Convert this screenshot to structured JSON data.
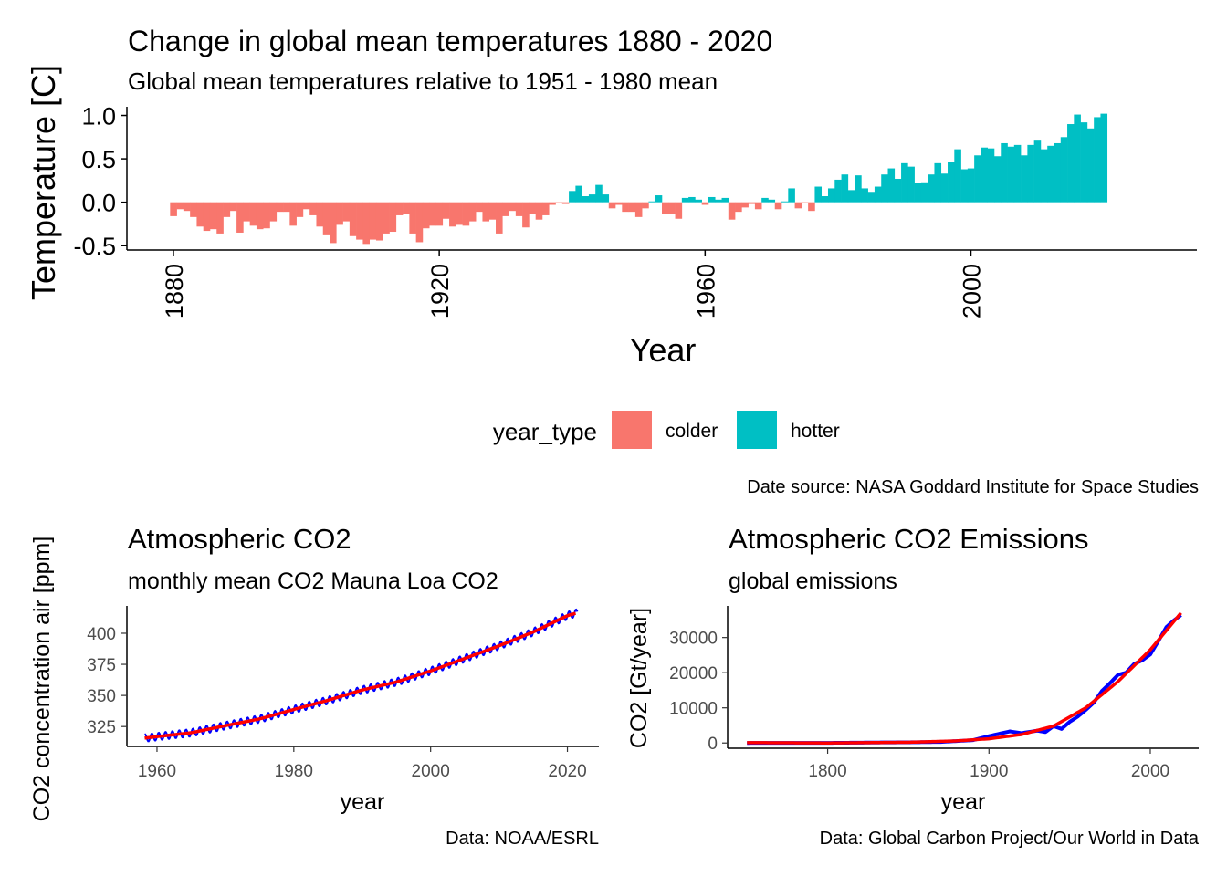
{
  "colors": {
    "colder": "#F8766D",
    "hotter": "#00BFC4",
    "co2_raw": "#0000FF",
    "co2_fit": "#FF0000",
    "axis": "#000000",
    "tick_text_dark": "#000000",
    "tick_text_grey": "#4D4D4D"
  },
  "panels": {
    "temperature": {
      "title": "Change in global mean temperatures 1880 - 2020",
      "subtitle": "Global mean temperatures relative to 1951 - 1980 mean",
      "caption": "Date source: NASA Goddard Institute for Space Studies",
      "legend": {
        "title": "year_type",
        "entries": [
          {
            "key": "colder",
            "label": "colder"
          },
          {
            "key": "hotter",
            "label": "hotter"
          }
        ]
      }
    },
    "co2_conc": {
      "title": "Atmospheric CO2",
      "subtitle": "monthly mean CO2 Mauna Loa CO2",
      "caption": "Data: NOAA/ESRL"
    },
    "co2_emis": {
      "title": "Atmospheric CO2 Emissions",
      "subtitle": "global emissions",
      "caption": "Data: Global Carbon Project/Our World in Data"
    }
  },
  "chart_data": [
    {
      "id": "temperature",
      "type": "bar",
      "title": "Change in global mean temperatures 1880 - 2020",
      "subtitle": "Global mean temperatures relative to 1951 - 1980 mean",
      "xlabel": "Year",
      "ylabel": "Temperature [C]",
      "xlim": [
        1873,
        2034
      ],
      "ylim": [
        -0.55,
        1.1
      ],
      "x_ticks": [
        1880,
        1920,
        1960,
        2000
      ],
      "y_ticks": [
        -0.5,
        0.0,
        0.5,
        1.0
      ],
      "y_tick_labels": [
        "-0.5",
        "0.0",
        "0.5",
        "1.0"
      ],
      "grid": false,
      "legend": "bottom",
      "start_year": 1880,
      "values": [
        -0.16,
        -0.08,
        -0.1,
        -0.17,
        -0.28,
        -0.33,
        -0.31,
        -0.36,
        -0.17,
        -0.1,
        -0.35,
        -0.22,
        -0.27,
        -0.31,
        -0.3,
        -0.22,
        -0.11,
        -0.11,
        -0.27,
        -0.17,
        -0.08,
        -0.15,
        -0.28,
        -0.37,
        -0.47,
        -0.26,
        -0.22,
        -0.39,
        -0.43,
        -0.48,
        -0.43,
        -0.44,
        -0.36,
        -0.34,
        -0.15,
        -0.14,
        -0.36,
        -0.46,
        -0.3,
        -0.27,
        -0.27,
        -0.19,
        -0.28,
        -0.26,
        -0.27,
        -0.22,
        -0.11,
        -0.22,
        -0.2,
        -0.36,
        -0.16,
        -0.1,
        -0.16,
        -0.29,
        -0.13,
        -0.2,
        -0.15,
        -0.03,
        -0.01,
        -0.02,
        0.13,
        0.19,
        0.07,
        0.09,
        0.2,
        0.09,
        -0.07,
        -0.03,
        -0.11,
        -0.11,
        -0.17,
        -0.07,
        0.01,
        0.08,
        -0.13,
        -0.14,
        -0.19,
        0.05,
        0.06,
        0.03,
        -0.03,
        0.06,
        0.03,
        0.05,
        -0.2,
        -0.11,
        -0.06,
        -0.02,
        -0.08,
        0.05,
        0.03,
        -0.08,
        0.01,
        0.16,
        -0.07,
        -0.01,
        -0.1,
        0.18,
        0.07,
        0.16,
        0.26,
        0.32,
        0.14,
        0.31,
        0.16,
        0.12,
        0.18,
        0.32,
        0.39,
        0.27,
        0.45,
        0.41,
        0.22,
        0.23,
        0.32,
        0.45,
        0.33,
        0.46,
        0.61,
        0.38,
        0.39,
        0.54,
        0.63,
        0.62,
        0.53,
        0.68,
        0.64,
        0.66,
        0.54,
        0.66,
        0.72,
        0.61,
        0.65,
        0.68,
        0.75,
        0.9,
        1.01,
        0.92,
        0.85,
        0.98,
        1.02
      ]
    },
    {
      "id": "co2_conc",
      "type": "line",
      "title": "Atmospheric CO2",
      "subtitle": "monthly mean CO2 Mauna Loa CO2",
      "xlabel": "year",
      "ylabel": "CO2 concentration air [ppm]",
      "xlim": [
        1955.6,
        2024.6
      ],
      "ylim": [
        309,
        422
      ],
      "x_ticks": [
        1960,
        1980,
        2000,
        2020
      ],
      "y_ticks": [
        325,
        350,
        375,
        400
      ],
      "grid": false,
      "series": [
        {
          "key": "monthly",
          "x": [
            1958.2,
            1960,
            1965,
            1970,
            1975,
            1980,
            1985,
            1990,
            1995,
            2000,
            2005,
            2010,
            2015,
            2020,
            2021.5
          ],
          "y": [
            315.7,
            316.9,
            320.0,
            325.7,
            331.1,
            338.7,
            346.1,
            354.4,
            360.8,
            369.7,
            379.8,
            389.9,
            401.0,
            414.2,
            416.5
          ],
          "seasonal_amplitude": 3.0
        },
        {
          "key": "trend",
          "x": [
            1958.2,
            1960,
            1965,
            1970,
            1975,
            1980,
            1985,
            1990,
            1995,
            2000,
            2005,
            2010,
            2015,
            2020,
            2021.5
          ],
          "y": [
            315.7,
            316.9,
            320.0,
            325.7,
            331.1,
            338.7,
            346.1,
            354.4,
            360.8,
            369.7,
            379.8,
            389.9,
            401.0,
            414.2,
            416.5
          ]
        }
      ]
    },
    {
      "id": "co2_emis",
      "type": "line",
      "title": "Atmospheric CO2 Emissions",
      "subtitle": "global emissions",
      "xlabel": "year",
      "ylabel": "CO2 [Gt/year]",
      "xlim": [
        1738,
        2030
      ],
      "ylim": [
        -1500,
        39000
      ],
      "x_ticks": [
        1800,
        1900,
        2000
      ],
      "y_ticks": [
        0,
        10000,
        20000,
        30000
      ],
      "grid": false,
      "series": [
        {
          "key": "annual",
          "x": [
            1750,
            1800,
            1850,
            1870,
            1890,
            1900,
            1910,
            1913,
            1920,
            1930,
            1935,
            1940,
            1945,
            1950,
            1955,
            1960,
            1965,
            1970,
            1975,
            1980,
            1985,
            1990,
            1995,
            2000,
            2005,
            2010,
            2015,
            2019
          ],
          "y": [
            9,
            28,
            197,
            300,
            800,
            1950,
            3000,
            3300,
            2800,
            3500,
            3100,
            4800,
            4000,
            6000,
            7500,
            9400,
            11500,
            14800,
            17000,
            19400,
            20000,
            22500,
            23500,
            25200,
            29000,
            33000,
            35000,
            36400
          ]
        },
        {
          "key": "smooth",
          "x": [
            1750,
            1800,
            1850,
            1880,
            1900,
            1920,
            1940,
            1960,
            1980,
            2000,
            2019
          ],
          "y": [
            100,
            0,
            200,
            600,
            1200,
            2400,
            4800,
            10000,
            17500,
            26500,
            37000
          ]
        }
      ]
    }
  ]
}
